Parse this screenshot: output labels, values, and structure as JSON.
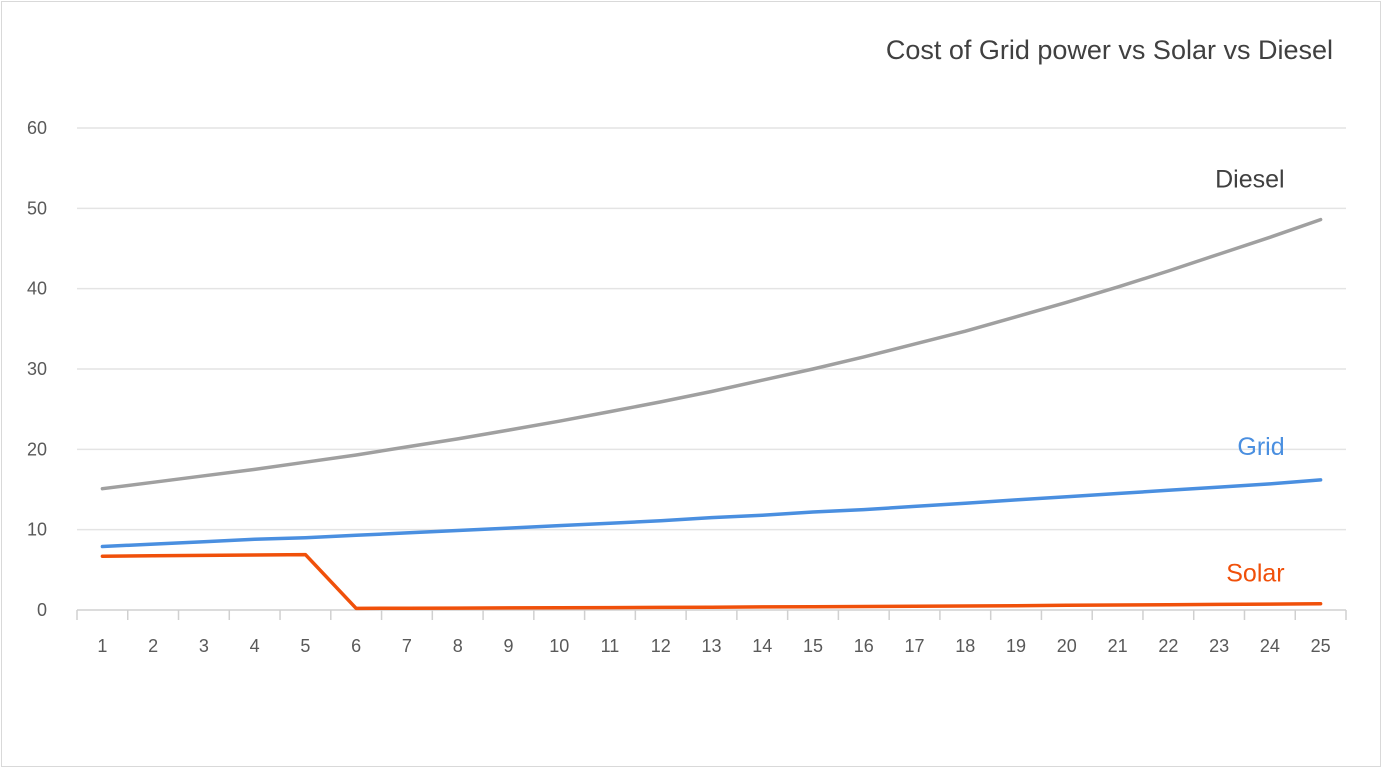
{
  "chart_data": {
    "type": "line",
    "title": "Cost of Grid power vs Solar vs Diesel",
    "xlabel": "",
    "ylabel": "",
    "x": [
      1,
      2,
      3,
      4,
      5,
      6,
      7,
      8,
      9,
      10,
      11,
      12,
      13,
      14,
      15,
      16,
      17,
      18,
      19,
      20,
      21,
      22,
      23,
      24,
      25
    ],
    "x_tick_labels": [
      "1",
      "2",
      "3",
      "4",
      "5",
      "6",
      "7",
      "8",
      "9",
      "10",
      "11",
      "12",
      "13",
      "14",
      "15",
      "16",
      "17",
      "18",
      "19",
      "20",
      "21",
      "22",
      "23",
      "24",
      "25"
    ],
    "ylim": [
      0,
      60
    ],
    "y_tick_labels": [
      "0",
      "10",
      "20",
      "30",
      "40",
      "50",
      "60"
    ],
    "y_ticks": [
      0,
      10,
      20,
      30,
      40,
      50,
      60
    ],
    "grid": true,
    "legend": "inline labels at right end of lines",
    "series": [
      {
        "name": "Diesel",
        "color": "#a0a0a0",
        "values": [
          15.1,
          15.9,
          16.7,
          17.5,
          18.4,
          19.3,
          20.3,
          21.3,
          22.4,
          23.5,
          24.7,
          25.9,
          27.2,
          28.6,
          30.0,
          31.5,
          33.1,
          34.7,
          36.5,
          38.3,
          40.2,
          42.2,
          44.3,
          46.4,
          48.6
        ]
      },
      {
        "name": "Grid",
        "color": "#4a8fe0",
        "values": [
          7.9,
          8.2,
          8.5,
          8.8,
          9.0,
          9.3,
          9.6,
          9.9,
          10.2,
          10.5,
          10.8,
          11.1,
          11.5,
          11.8,
          12.2,
          12.5,
          12.9,
          13.3,
          13.7,
          14.1,
          14.5,
          14.9,
          15.3,
          15.7,
          16.2
        ]
      },
      {
        "name": "Solar",
        "color": "#f0500a",
        "values": [
          6.7,
          6.75,
          6.8,
          6.85,
          6.9,
          0.2,
          0.22,
          0.24,
          0.26,
          0.28,
          0.3,
          0.32,
          0.35,
          0.38,
          0.41,
          0.44,
          0.47,
          0.5,
          0.54,
          0.58,
          0.62,
          0.66,
          0.7,
          0.74,
          0.78
        ]
      }
    ]
  }
}
